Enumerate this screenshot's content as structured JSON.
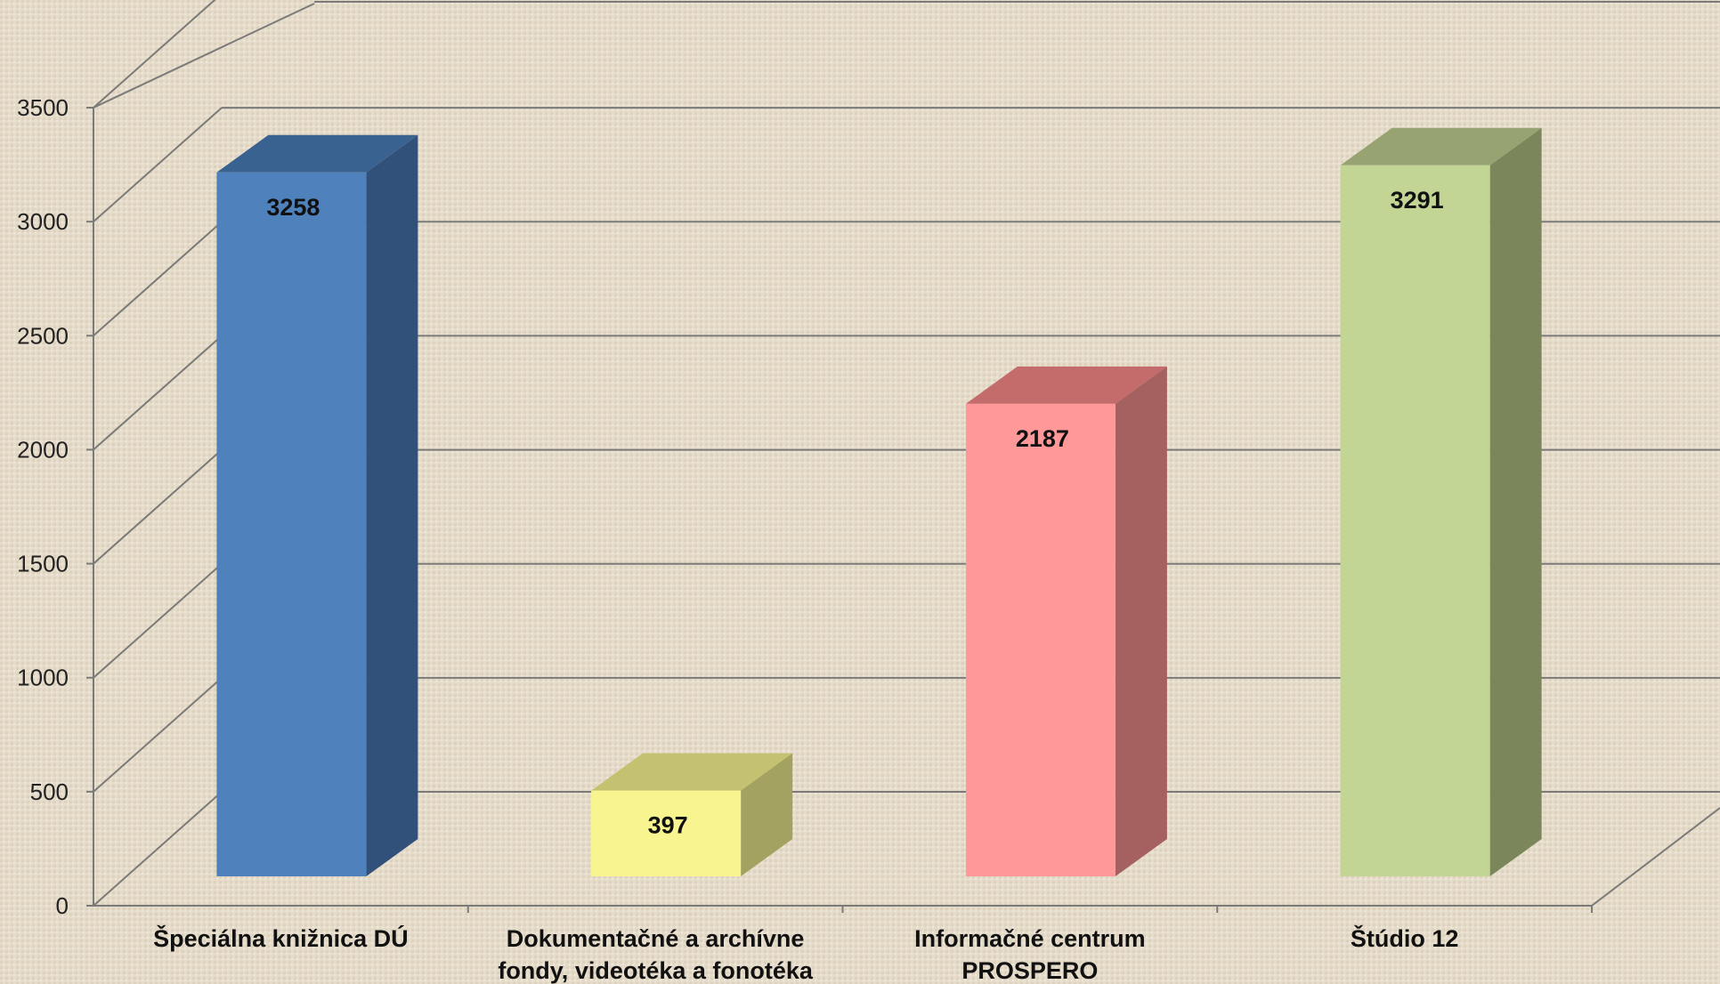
{
  "chart_data": {
    "type": "bar",
    "style": "3d-column",
    "categories": [
      [
        "Špeciálna knižnica DÚ"
      ],
      [
        "Dokumentačné a archívne",
        "fondy, videotéka a fonotéka"
      ],
      [
        "Informačné centrum",
        "PROSPERO"
      ],
      [
        "Štúdio 12"
      ]
    ],
    "values": [
      3258,
      397,
      2187,
      3291
    ],
    "value_labels": [
      "3258",
      "397",
      "2187",
      "3291"
    ],
    "ylim": [
      0,
      3500
    ],
    "yticks": [
      0,
      500,
      1000,
      1500,
      2000,
      2500,
      3000,
      3500
    ],
    "ytick_labels": [
      "0",
      "500",
      "1000",
      "1500",
      "2000",
      "2500",
      "3000",
      "3500"
    ],
    "grid": true,
    "legend": "none",
    "colors": {
      "front": [
        "#4f81bd",
        "#f8f48f",
        "#ff9999",
        "#c2d595"
      ],
      "side": [
        "#31517a",
        "#a4a260",
        "#a56060",
        "#7b875b"
      ],
      "top": [
        "#3a6290",
        "#c4c170",
        "#c46c6c",
        "#97a472"
      ],
      "grid": "#7a7a78",
      "background": "#e6dccb"
    }
  }
}
